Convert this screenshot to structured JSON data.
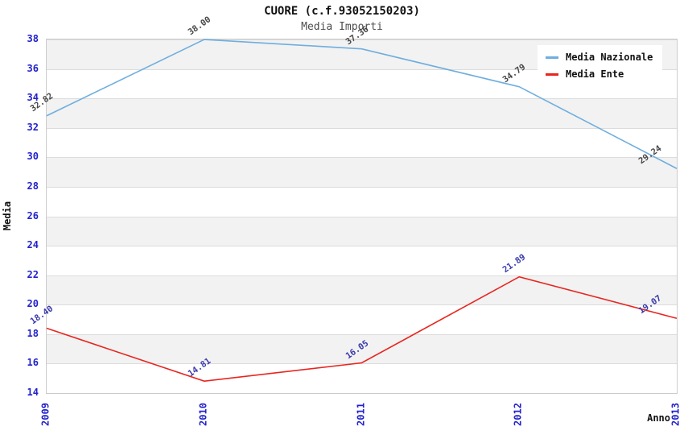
{
  "header": {
    "title": "CUORE (c.f.93052150203)",
    "subtitle": "Media Importi"
  },
  "axes": {
    "y_label": "Media",
    "x_label": "Anno",
    "y_ticks": [
      38,
      36,
      34,
      32,
      30,
      28,
      26,
      24,
      22,
      20,
      18,
      16,
      14
    ],
    "x_ticks": [
      "2009",
      "2010",
      "2011",
      "2012",
      "2013"
    ],
    "tick_color": "#2222cc"
  },
  "legend": {
    "position": "top-right",
    "items": [
      {
        "label": "Media Nazionale",
        "color": "#6faede"
      },
      {
        "label": "Media Ente",
        "color": "#e8251f"
      }
    ]
  },
  "colors": {
    "band_gray": "#f2f2f2",
    "band_white": "#ffffff",
    "grid_line": "#dcdcdc",
    "plot_border": "#cccccc"
  },
  "chart_data": {
    "type": "line",
    "title": "CUORE (c.f.93052150203)",
    "subtitle": "Media Importi",
    "xlabel": "Anno",
    "ylabel": "Media",
    "x": [
      "2009",
      "2010",
      "2011",
      "2012",
      "2013"
    ],
    "series": [
      {
        "name": "Media Nazionale",
        "color": "#6faede",
        "label_color": "#474747",
        "values": [
          32.82,
          38.0,
          37.36,
          34.79,
          29.24
        ]
      },
      {
        "name": "Media Ente",
        "color": "#e8251f",
        "label_color": "#3939ac",
        "values": [
          18.4,
          14.81,
          16.05,
          21.89,
          19.07
        ]
      }
    ],
    "ylim": [
      14,
      38
    ],
    "ytick_step": 2,
    "grid": "horizontal-bands",
    "legend_position": "top-right"
  }
}
